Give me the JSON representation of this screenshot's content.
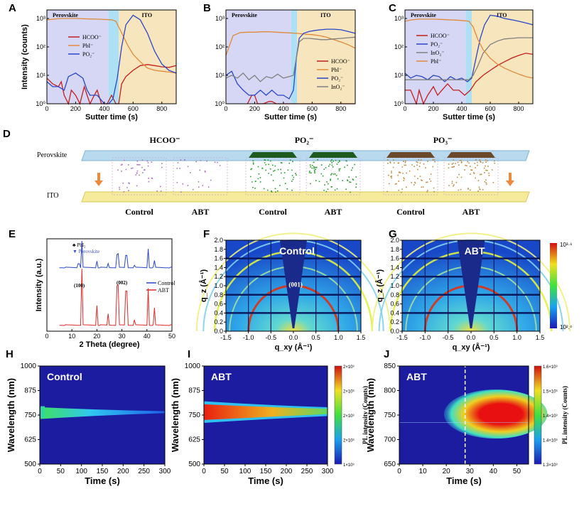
{
  "panel_letters": [
    "A",
    "B",
    "C",
    "D",
    "E",
    "F",
    "G",
    "H",
    "I",
    "J"
  ],
  "colors": {
    "perovskite_bg": "#d6d7f5",
    "ito_bg": "#f7e6bd",
    "interface": "#aee0f5",
    "hcoo": "#c41e1e",
    "pbi": "#e08a3a",
    "po2": "#2a46c8",
    "ino2": "#808080"
  },
  "chart_data": [
    {
      "id": "A",
      "type": "line",
      "xlabel": "Sutter time (s)",
      "ylabel": "Intensity (counts)",
      "xlim": [
        0,
        900
      ],
      "x_ticks": [
        "0",
        "200",
        "400",
        "600",
        "800"
      ],
      "ylim_log10": [
        0,
        3.3
      ],
      "y_ticks": [
        "10⁰",
        "10¹",
        "10²",
        "10³"
      ],
      "regions": [
        "Perovskite",
        "ITO"
      ],
      "interface_range": [
        430,
        500
      ],
      "legend": [
        "HCOO⁻",
        "PbI⁻",
        "PO₂⁻"
      ],
      "series": [
        {
          "name": "HCOO⁻",
          "color": "#c41e1e",
          "x": [
            0,
            40,
            80,
            100,
            120,
            150,
            170,
            200,
            230,
            260,
            280,
            300,
            330,
            350,
            380,
            420,
            450,
            480,
            500,
            520,
            550,
            600,
            650,
            700,
            750,
            800,
            850,
            900
          ],
          "y": [
            8,
            5,
            4,
            6,
            2,
            1,
            3,
            2,
            1,
            4,
            2,
            1,
            2,
            3,
            1,
            1,
            2,
            1,
            1,
            5,
            9,
            15,
            22,
            24,
            22,
            20,
            19,
            22
          ]
        },
        {
          "name": "PbI⁻",
          "color": "#e08a3a",
          "x": [
            0,
            50,
            100,
            150,
            200,
            250,
            300,
            350,
            400,
            450,
            480,
            500,
            530,
            560,
            600,
            650,
            700,
            750,
            800,
            850,
            900
          ],
          "y": [
            900,
            950,
            1000,
            1000,
            1000,
            980,
            960,
            950,
            920,
            900,
            800,
            500,
            250,
            120,
            55,
            30,
            18,
            15,
            14,
            13,
            12
          ]
        },
        {
          "name": "PO₂⁻",
          "color": "#2a46c8",
          "x": [
            0,
            40,
            80,
            120,
            150,
            200,
            250,
            280,
            300,
            350,
            400,
            430,
            460,
            490,
            520,
            550,
            600,
            650,
            700,
            750,
            800,
            850,
            900
          ],
          "y": [
            6,
            4,
            4,
            3,
            9,
            12,
            8,
            3,
            2,
            2,
            1,
            1,
            1.5,
            8,
            100,
            600,
            1300,
            900,
            300,
            70,
            25,
            15,
            12
          ]
        }
      ]
    },
    {
      "id": "B",
      "type": "line",
      "xlabel": "Sutter time (s)",
      "ylabel": "",
      "xlim": [
        0,
        900
      ],
      "x_ticks": [
        "0",
        "200",
        "400",
        "600",
        "800"
      ],
      "ylim_log10": [
        0,
        3.3
      ],
      "y_ticks": [
        "10⁰",
        "10¹",
        "10²",
        "10³"
      ],
      "regions": [
        "Perovskite",
        "ITO"
      ],
      "interface_range": [
        455,
        495
      ],
      "legend": [
        "HCOO⁻",
        "PbI⁻",
        "PO₂⁻",
        "InO₂⁻"
      ],
      "series": [
        {
          "name": "HCOO⁻",
          "color": "#c41e1e",
          "x": [
            150,
            180,
            200,
            220,
            260,
            300,
            320,
            350,
            400,
            450,
            500,
            520,
            550,
            600,
            650,
            700,
            750,
            800,
            850,
            900
          ],
          "y": [
            1,
            2,
            2,
            1,
            1,
            1.2,
            1.2,
            1,
            1,
            1,
            1,
            1,
            1,
            1,
            1,
            1,
            1,
            1,
            1,
            1
          ]
        },
        {
          "name": "PbI⁻",
          "color": "#e08a3a",
          "x": [
            0,
            50,
            100,
            150,
            200,
            250,
            300,
            350,
            400,
            450,
            480,
            500,
            550,
            600,
            650,
            700,
            750,
            800,
            850,
            900
          ],
          "y": [
            50,
            250,
            320,
            330,
            330,
            340,
            340,
            330,
            320,
            310,
            300,
            300,
            280,
            270,
            250,
            220,
            180,
            150,
            120,
            90
          ]
        },
        {
          "name": "PO₂⁻",
          "color": "#2a46c8",
          "x": [
            0,
            40,
            80,
            120,
            160,
            200,
            240,
            280,
            320,
            360,
            400,
            440,
            470,
            490,
            510,
            540,
            580,
            620,
            660,
            700,
            750,
            800,
            850,
            900
          ],
          "y": [
            10,
            14,
            5,
            3,
            2,
            2,
            3,
            2,
            3,
            2,
            2,
            1.5,
            3,
            40,
            200,
            300,
            350,
            380,
            400,
            420,
            420,
            400,
            350,
            300
          ]
        },
        {
          "name": "InO₂⁻",
          "color": "#808080",
          "x": [
            0,
            40,
            80,
            120,
            160,
            200,
            240,
            280,
            320,
            360,
            400,
            440,
            470,
            490,
            510,
            540,
            580,
            620,
            660,
            700,
            750,
            800,
            850,
            900
          ],
          "y": [
            8,
            10,
            8,
            12,
            7,
            10,
            6,
            9,
            8,
            11,
            8,
            9,
            10,
            40,
            150,
            200,
            200,
            190,
            180,
            180,
            190,
            200,
            210,
            220
          ]
        }
      ]
    },
    {
      "id": "C",
      "type": "line",
      "xlabel": "Sutter time (s)",
      "ylabel": "",
      "xlim": [
        0,
        900
      ],
      "x_ticks": [
        "0",
        "200",
        "400",
        "600",
        "800"
      ],
      "ylim_log10": [
        0,
        3.3
      ],
      "y_ticks": [
        "10⁰",
        "10¹",
        "10²",
        "10³"
      ],
      "regions": [
        "Perovskite",
        "ITO"
      ],
      "interface_range": [
        430,
        470
      ],
      "legend": [
        "HCOO⁻",
        "PO₂⁻",
        "InO₂⁻",
        "PbI⁻"
      ],
      "series": [
        {
          "name": "HCOO⁻",
          "color": "#c41e1e",
          "x": [
            0,
            40,
            80,
            100,
            130,
            160,
            200,
            230,
            260,
            300,
            340,
            380,
            420,
            460,
            500,
            550,
            600,
            650,
            700,
            750,
            800,
            850,
            900
          ],
          "y": [
            3,
            3,
            1,
            3,
            1,
            2,
            4,
            2,
            3,
            5,
            3,
            3,
            2,
            3,
            6,
            10,
            15,
            22,
            30,
            40,
            50,
            60,
            55
          ]
        },
        {
          "name": "PO₂⁻",
          "color": "#2a46c8",
          "x": [
            0,
            40,
            80,
            120,
            160,
            200,
            240,
            280,
            320,
            360,
            400,
            440,
            470,
            500,
            530,
            560,
            600,
            650,
            700,
            750,
            800,
            850,
            900
          ],
          "y": [
            12,
            8,
            10,
            9,
            7,
            10,
            9,
            6,
            9,
            7,
            8,
            6,
            8,
            40,
            200,
            600,
            1300,
            1200,
            1000,
            900,
            800,
            700,
            600
          ]
        },
        {
          "name": "InO₂⁻",
          "color": "#808080",
          "x": [
            0,
            100,
            200,
            300,
            400,
            450,
            480,
            510,
            550,
            600,
            650,
            700,
            750,
            800,
            850,
            900
          ],
          "y": [
            7,
            7,
            7,
            7,
            7,
            7,
            10,
            20,
            60,
            120,
            160,
            190,
            200,
            210,
            210,
            210
          ]
        },
        {
          "name": "PbI⁻",
          "color": "#e08a3a",
          "x": [
            0,
            50,
            100,
            150,
            200,
            250,
            300,
            350,
            400,
            450,
            480,
            510,
            550,
            600,
            650,
            700,
            750,
            800,
            850,
            900
          ],
          "y": [
            800,
            900,
            950,
            950,
            950,
            930,
            900,
            880,
            850,
            800,
            500,
            200,
            80,
            40,
            25,
            18,
            14,
            11,
            9,
            8
          ]
        }
      ]
    },
    {
      "id": "E",
      "type": "line",
      "xlabel": "2 Theta (degree)",
      "ylabel": "Intensity (a.u.)",
      "xlim": [
        0,
        50
      ],
      "x_ticks": [
        "0",
        "10",
        "20",
        "30",
        "40",
        "50"
      ],
      "legend": [
        "Control",
        "ABT"
      ],
      "markers": [
        "PbI₂",
        "Perovskite"
      ],
      "peak_labels": [
        "(100)",
        "(002)"
      ],
      "series": [
        {
          "name": "Control",
          "color": "#2a46c8",
          "x": [
            5,
            12.7,
            14,
            20,
            24.5,
            28.2,
            31.8,
            35,
            40.6,
            43
          ],
          "y": [
            0,
            0.15,
            1,
            0.25,
            0.15,
            0.5,
            0.45,
            0.1,
            0.7,
            0.25
          ]
        },
        {
          "name": "ABT",
          "color": "#e02a2a",
          "x": [
            5,
            14,
            20,
            24.5,
            28.2,
            31.8,
            35,
            40.6,
            43
          ],
          "y": [
            0,
            1,
            0.35,
            0.2,
            0.7,
            0.6,
            0.1,
            0.65,
            0.3
          ]
        }
      ]
    },
    {
      "id": "F",
      "type": "heatmap",
      "title": "Control",
      "xlabel": "q_xy (Å⁻¹)",
      "ylabel": "q_z (Å⁻¹)",
      "xlim": [
        -1.5,
        1.5
      ],
      "ylim": [
        0,
        2.0
      ],
      "x_ticks": [
        "-1.5",
        "-1.0",
        "-0.5",
        "0.0",
        "0.5",
        "1.0",
        "1.5"
      ],
      "y_ticks": [
        "0.0",
        "0.2",
        "0.4",
        "0.6",
        "0.8",
        "1.0",
        "1.2",
        "1.4",
        "1.6",
        "1.8",
        "2.0"
      ],
      "annotation": "(001)"
    },
    {
      "id": "G",
      "type": "heatmap",
      "title": "ABT",
      "xlabel": "q_xy (Å⁻¹)",
      "ylabel": "q_z (Å⁻¹)",
      "xlim": [
        -1.5,
        1.5
      ],
      "ylim": [
        0,
        2.0
      ],
      "x_ticks": [
        "-1.5",
        "-1.0",
        "-0.5",
        "0.0",
        "0.5",
        "1.0",
        "1.5"
      ],
      "y_ticks": [
        "0.0",
        "0.2",
        "0.4",
        "0.6",
        "0.8",
        "1.0",
        "1.2",
        "1.4",
        "1.6",
        "1.8",
        "2.0"
      ],
      "colorbar": [
        "10³·⁶",
        "10².⁴"
      ]
    },
    {
      "id": "H",
      "type": "heatmap",
      "title": "Control",
      "xlabel": "Time (s)",
      "ylabel": "Wavelength (nm)",
      "xlim": [
        0,
        300
      ],
      "ylim": [
        500,
        1000
      ],
      "x_ticks": [
        "0",
        "50",
        "100",
        "150",
        "200",
        "250",
        "300"
      ],
      "y_ticks": [
        "500",
        "625",
        "750",
        "875",
        "1000"
      ]
    },
    {
      "id": "I",
      "type": "heatmap",
      "title": "ABT",
      "xlabel": "Time (s)",
      "ylabel": "Wavelength (nm)",
      "xlim": [
        0,
        300
      ],
      "ylim": [
        500,
        1000
      ],
      "x_ticks": [
        "0",
        "50",
        "100",
        "150",
        "200",
        "250",
        "300"
      ],
      "y_ticks": [
        "500",
        "625",
        "750",
        "875",
        "1000"
      ],
      "colorbar_label": "PL intensity (Counts)",
      "colorbar_ticks": [
        "2×10³",
        "2×10³",
        "2×10³",
        "2×10³",
        "1×10³"
      ]
    },
    {
      "id": "J",
      "type": "heatmap",
      "title": "ABT",
      "xlabel": "Time (s)",
      "ylabel": "Wavelength (nm)",
      "xlim": [
        0,
        55
      ],
      "ylim": [
        650,
        850
      ],
      "x_ticks": [
        "0",
        "10",
        "20",
        "30",
        "40",
        "50"
      ],
      "y_ticks": [
        "650",
        "700",
        "750",
        "800",
        "850"
      ],
      "dashed_line_x": 28,
      "colorbar_label": "PL intensity (Counts)",
      "colorbar_ticks": [
        "1.6×10³",
        "1.5×10³",
        "1.4×10³",
        "1.4×10³",
        "1.3×10³"
      ]
    }
  ],
  "schematic_D": {
    "ions": [
      "HCOO⁻",
      "PO₂⁻",
      "PO₃⁻"
    ],
    "layers": [
      "Perovskite",
      "ITO"
    ],
    "samples": [
      "Control",
      "ABT",
      "Control",
      "ABT",
      "Control",
      "ABT"
    ]
  }
}
